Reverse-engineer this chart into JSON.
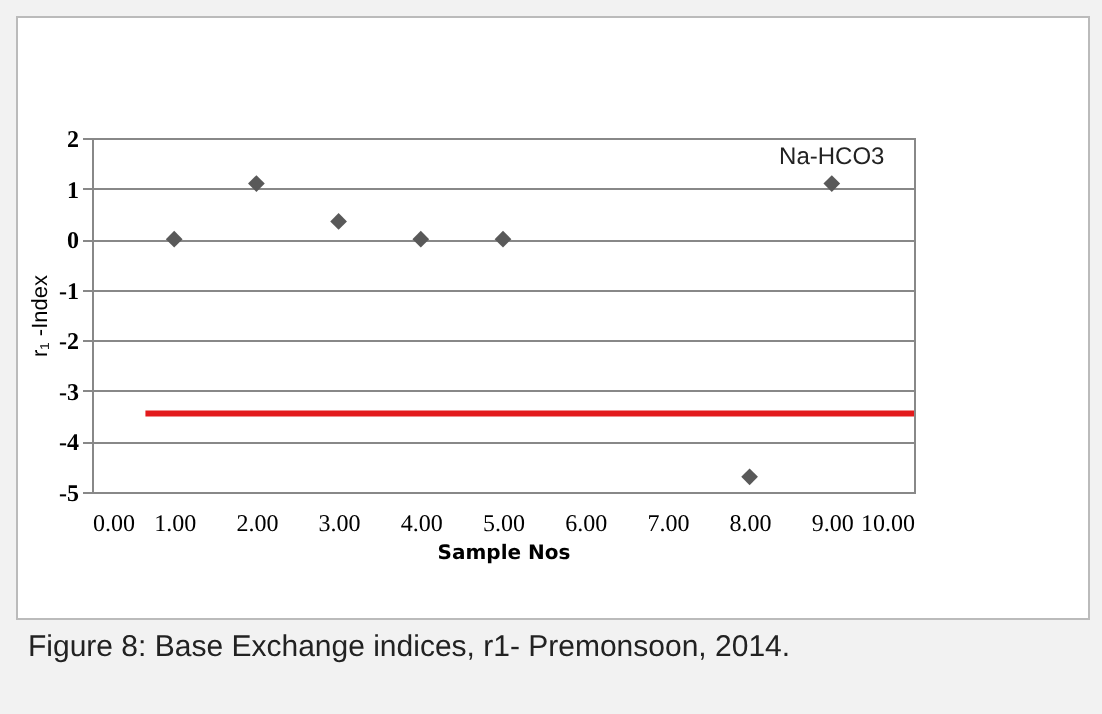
{
  "chart_data": {
    "type": "scatter",
    "xlabel": "Sample  Nos",
    "ylabel": "r₁ -Index",
    "annotations": [
      {
        "text": "Na-HCO3",
        "x": 9,
        "y": 1.1
      },
      "Figure 8: Base Exchange indices, r1- Premonsoon, 2014."
    ],
    "xlim": [
      0,
      10
    ],
    "xticks": [
      {
        "value": 0,
        "label": "0.00"
      },
      {
        "value": 1,
        "label": "1.00"
      },
      {
        "value": 2,
        "label": "2.00"
      },
      {
        "value": 3,
        "label": "3.00"
      },
      {
        "value": 4,
        "label": "4.00"
      },
      {
        "value": 5,
        "label": "5.00"
      },
      {
        "value": 6,
        "label": "6.00"
      },
      {
        "value": 7,
        "label": "7.00"
      },
      {
        "value": 8,
        "label": "8.00"
      },
      {
        "value": 9,
        "label": "9.00"
      },
      {
        "value": 10,
        "label": "10.00"
      }
    ],
    "ylim": [
      -5,
      2
    ],
    "yticks": [
      -5,
      -4,
      -3,
      -2,
      -1,
      0,
      1,
      2
    ],
    "grid": "y",
    "series": [
      {
        "type": "scatter",
        "marker": "diamond",
        "x": [
          1,
          2,
          3,
          4,
          5,
          8,
          9
        ],
        "values": [
          0,
          1.1,
          0.35,
          0,
          0,
          -4.7,
          1.1
        ],
        "color": "#595959"
      },
      {
        "type": "line",
        "x": [
          0.65,
          10
        ],
        "values": [
          -3.45,
          -3.45
        ],
        "color": "#e31a1c"
      }
    ]
  }
}
